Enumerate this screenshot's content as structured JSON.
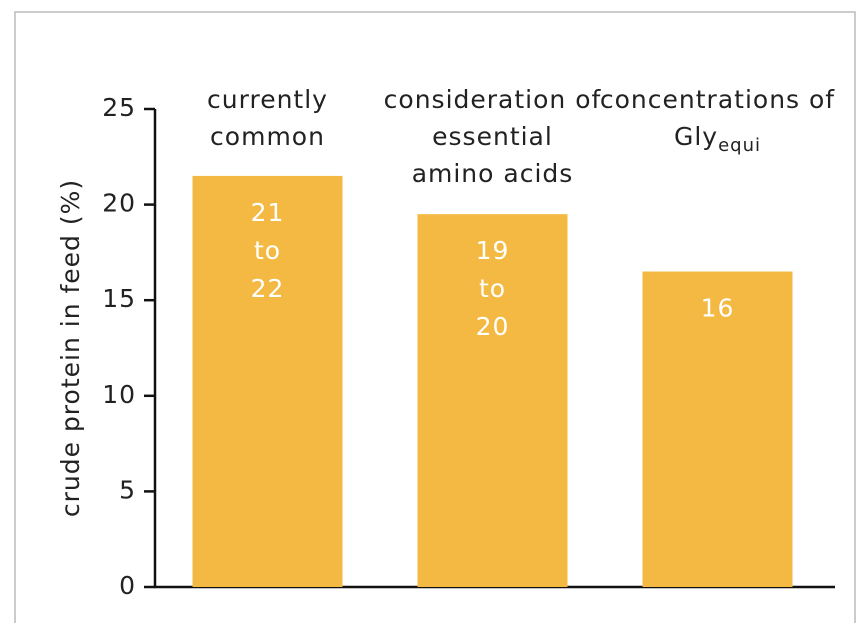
{
  "chart_data": {
    "type": "bar",
    "y_label": "crude protein in feed  (%)",
    "categories": [
      [
        "currently",
        "common"
      ],
      [
        "consideration of",
        "essential",
        "amino acids"
      ],
      [
        "concentrations of",
        {
          "text": "Gly",
          "subscript": "equi"
        }
      ]
    ],
    "values": [
      21.5,
      19.5,
      16.5
    ],
    "value_labels": [
      "21 to 22",
      "19 to 20",
      "16"
    ],
    "color": "#f4b942",
    "ylim": [
      0,
      25
    ],
    "yticks": [
      0,
      5,
      10,
      15,
      20,
      25
    ]
  }
}
